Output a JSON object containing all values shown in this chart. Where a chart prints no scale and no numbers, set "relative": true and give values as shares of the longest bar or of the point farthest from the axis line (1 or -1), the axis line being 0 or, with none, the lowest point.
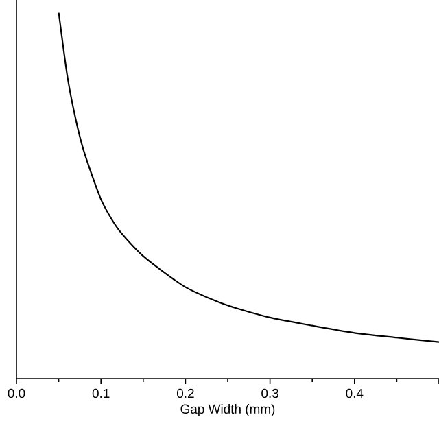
{
  "chart_data": {
    "type": "line",
    "xlabel": "Gap Width (mm)",
    "relative": true,
    "color": "#000000",
    "x": [
      0.05,
      0.06,
      0.07,
      0.08,
      0.1,
      0.12,
      0.15,
      0.2,
      0.25,
      0.3,
      0.35,
      0.4,
      0.45,
      0.5
    ],
    "values": [
      1.0,
      0.83,
      0.71,
      0.62,
      0.49,
      0.41,
      0.335,
      0.25,
      0.2,
      0.167,
      0.145,
      0.125,
      0.112,
      0.1
    ],
    "xlim": [
      0,
      0.5
    ],
    "xticks": [
      {
        "value": 0,
        "label": "0.0"
      },
      {
        "value": 0.1,
        "label": "0.1"
      },
      {
        "value": 0.2,
        "label": "0.2"
      },
      {
        "value": 0.3,
        "label": "0.3"
      },
      {
        "value": 0.4,
        "label": "0.4"
      },
      {
        "value": 0.5,
        "label": null
      }
    ],
    "grid": false,
    "marker": "none",
    "line_style": "solid"
  }
}
